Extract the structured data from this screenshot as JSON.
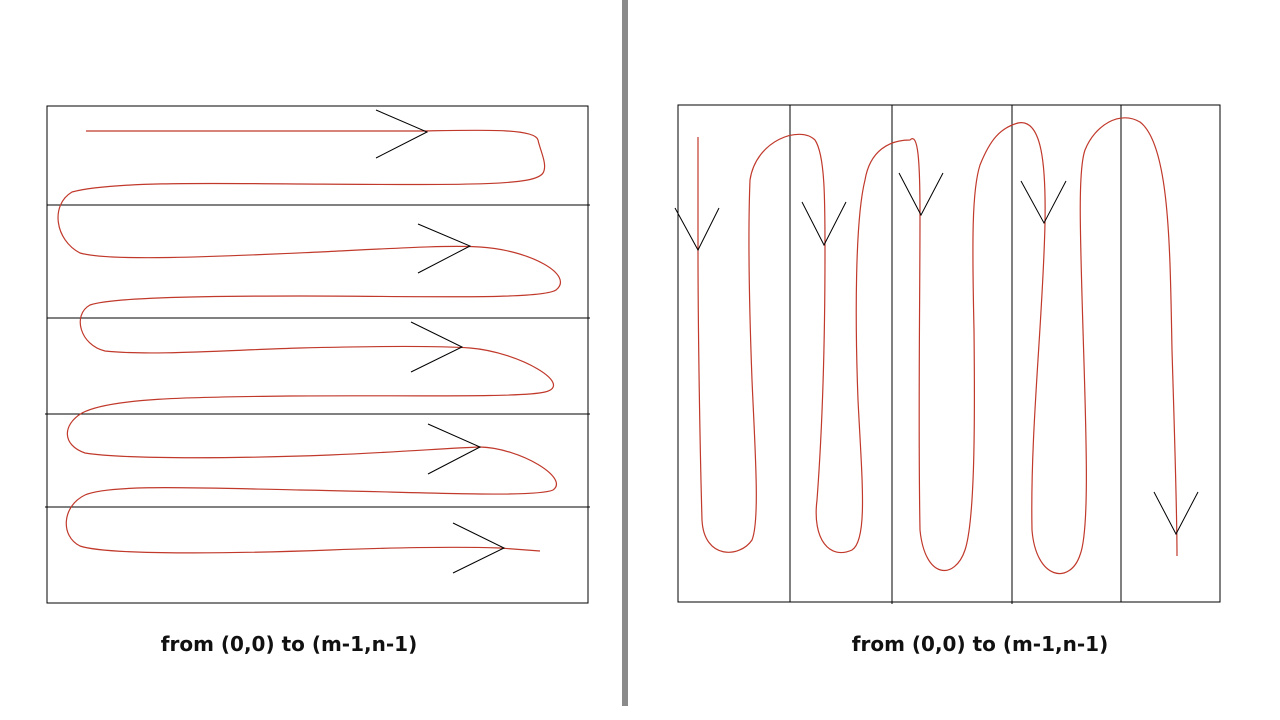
{
  "diagrams": [
    {
      "id": "row-wise",
      "traversal": "row-major",
      "rows": 5,
      "caption": "from (0,0) to (m-1,n-1)"
    },
    {
      "id": "column-wise",
      "traversal": "column-major",
      "columns": 5,
      "caption": "from (0,0) to (m-1,n-1)"
    }
  ],
  "colors": {
    "path": "#c0392b",
    "grid": "#000000",
    "arrow": "#000000",
    "divider": "#8a8a8a"
  }
}
